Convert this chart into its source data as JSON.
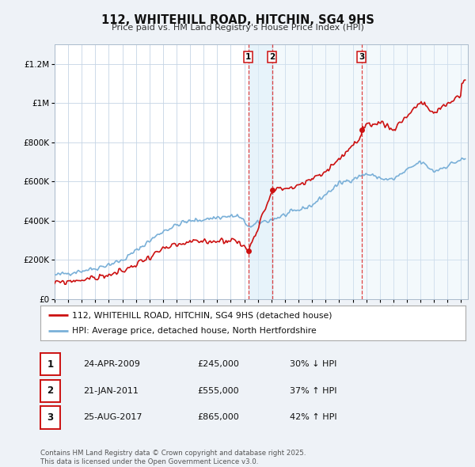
{
  "title": "112, WHITEHILL ROAD, HITCHIN, SG4 9HS",
  "subtitle": "Price paid vs. HM Land Registry's House Price Index (HPI)",
  "background_color": "#eef2f7",
  "plot_bg_color": "#ffffff",
  "grid_color": "#c5d5e5",
  "hpi_color": "#7ab0d8",
  "price_color": "#cc1111",
  "ylim": [
    0,
    1300000
  ],
  "yticks": [
    0,
    200000,
    400000,
    600000,
    800000,
    1000000,
    1200000
  ],
  "ytick_labels": [
    "£0",
    "£200K",
    "£400K",
    "£600K",
    "£800K",
    "£1M",
    "£1.2M"
  ],
  "xlim_start": 1995.0,
  "xlim_end": 2025.5,
  "xticks": [
    1995,
    1996,
    1997,
    1998,
    1999,
    2000,
    2001,
    2002,
    2003,
    2004,
    2005,
    2006,
    2007,
    2008,
    2009,
    2010,
    2011,
    2012,
    2013,
    2014,
    2015,
    2016,
    2017,
    2018,
    2019,
    2020,
    2021,
    2022,
    2023,
    2024,
    2025
  ],
  "sale1_x": 2009.3,
  "sale2_x": 2011.05,
  "sale3_x": 2017.65,
  "sale1_y": 245000,
  "sale2_y": 555000,
  "sale3_y": 865000,
  "legend_label_red": "112, WHITEHILL ROAD, HITCHIN, SG4 9HS (detached house)",
  "legend_label_blue": "HPI: Average price, detached house, North Hertfordshire",
  "table_rows": [
    {
      "num": "1",
      "date": "24-APR-2009",
      "price": "£245,000",
      "hpi": "30% ↓ HPI"
    },
    {
      "num": "2",
      "date": "21-JAN-2011",
      "price": "£555,000",
      "hpi": "37% ↑ HPI"
    },
    {
      "num": "3",
      "date": "25-AUG-2017",
      "price": "£865,000",
      "hpi": "42% ↑ HPI"
    }
  ],
  "footnote": "Contains HM Land Registry data © Crown copyright and database right 2025.\nThis data is licensed under the Open Government Licence v3.0."
}
